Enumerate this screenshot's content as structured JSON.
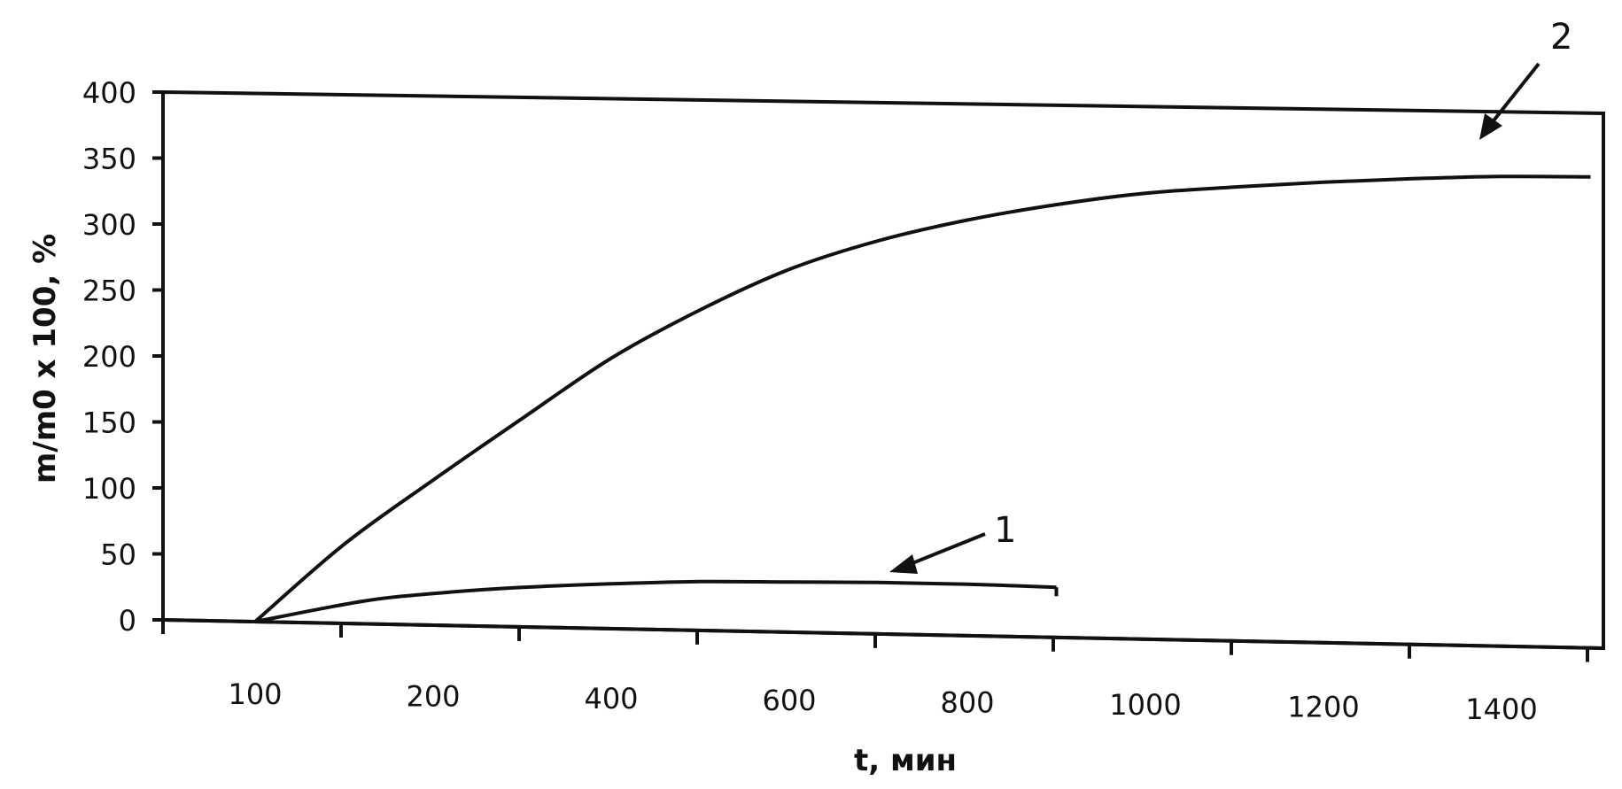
{
  "chart_data": {
    "type": "line",
    "xlabel": "t, мин",
    "ylabel": "m/m0 x 100, %",
    "x_tick_labels": [
      "100",
      "200",
      "400",
      "600",
      "800",
      "1000",
      "1200",
      "1400"
    ],
    "y_ticks": [
      0,
      50,
      100,
      150,
      200,
      250,
      300,
      350,
      400
    ],
    "ylim": [
      0,
      400
    ],
    "grid": false,
    "legend": "none",
    "series": [
      {
        "name": "1",
        "x_tick_index": [
          0.0,
          0.6,
          1.0,
          1.5,
          2.0,
          2.5,
          3.0,
          3.5,
          4.0,
          4.5
        ],
        "values": [
          0,
          17,
          24,
          30,
          34,
          37,
          38,
          39,
          39,
          38
        ]
      },
      {
        "name": "2",
        "x_tick_index": [
          0.0,
          0.5,
          1.0,
          1.5,
          2.0,
          2.5,
          3.0,
          3.5,
          4.0,
          4.5,
          5.0,
          5.5,
          6.0,
          6.5,
          7.0,
          7.5
        ],
        "values": [
          0,
          60,
          110,
          158,
          205,
          243,
          275,
          298,
          315,
          328,
          338,
          344,
          349,
          353,
          356,
          357
        ]
      }
    ]
  }
}
